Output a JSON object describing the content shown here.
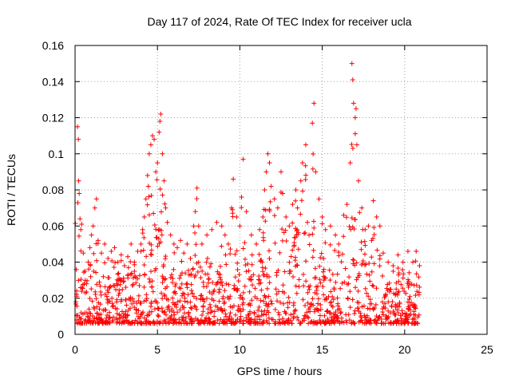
{
  "chart_data": {
    "type": "scatter",
    "title": "Day 117 of 2024, Rate Of TEC Index for receiver ucla",
    "xlabel": "GPS time / hours",
    "ylabel": "ROTI / TECUs",
    "xlim": [
      0,
      25
    ],
    "ylim": [
      0,
      0.16
    ],
    "xticks": [
      0,
      5,
      10,
      15,
      20,
      25
    ],
    "xtick_labels": [
      "0",
      "5",
      "10",
      "15",
      "20",
      "25"
    ],
    "yticks": [
      0,
      0.02,
      0.04,
      0.06,
      0.08,
      0.1,
      0.12,
      0.14,
      0.16
    ],
    "ytick_labels": [
      "0",
      "0.02",
      "0.04",
      "0.06",
      "0.08",
      "0.1",
      "0.12",
      "0.14",
      "0.16"
    ],
    "grid": true,
    "marker": "+",
    "color": "#ff0000",
    "series": [
      {
        "name": "ROTI",
        "points": [
          [
            0.05,
            0.018
          ],
          [
            0.1,
            0.024
          ],
          [
            0.15,
            0.115
          ],
          [
            0.2,
            0.108
          ],
          [
            0.22,
            0.085
          ],
          [
            0.25,
            0.078
          ],
          [
            0.3,
            0.064
          ],
          [
            0.35,
            0.058
          ],
          [
            0.4,
            0.061
          ],
          [
            0.5,
            0.045
          ],
          [
            0.6,
            0.035
          ],
          [
            0.7,
            0.028
          ],
          [
            0.8,
            0.04
          ],
          [
            0.9,
            0.048
          ],
          [
            1.0,
            0.055
          ],
          [
            1.1,
            0.06
          ],
          [
            1.2,
            0.07
          ],
          [
            1.3,
            0.075
          ],
          [
            1.4,
            0.052
          ],
          [
            1.6,
            0.045
          ],
          [
            1.8,
            0.05
          ],
          [
            2.0,
            0.042
          ],
          [
            2.2,
            0.046
          ],
          [
            2.4,
            0.048
          ],
          [
            2.6,
            0.04
          ],
          [
            2.8,
            0.044
          ],
          [
            3.0,
            0.038
          ],
          [
            3.2,
            0.043
          ],
          [
            3.4,
            0.05
          ],
          [
            3.6,
            0.04
          ],
          [
            3.8,
            0.046
          ],
          [
            4.0,
            0.05
          ],
          [
            4.1,
            0.058
          ],
          [
            4.2,
            0.065
          ],
          [
            4.3,
            0.075
          ],
          [
            4.4,
            0.088
          ],
          [
            4.45,
            0.082
          ],
          [
            4.5,
            0.1
          ],
          [
            4.6,
            0.105
          ],
          [
            4.7,
            0.11
          ],
          [
            4.8,
            0.108
          ],
          [
            4.9,
            0.09
          ],
          [
            5.0,
            0.095
          ],
          [
            5.1,
            0.112
          ],
          [
            5.15,
            0.118
          ],
          [
            5.2,
            0.122
          ],
          [
            5.3,
            0.1
          ],
          [
            5.4,
            0.085
          ],
          [
            5.5,
            0.07
          ],
          [
            5.6,
            0.062
          ],
          [
            5.8,
            0.055
          ],
          [
            6.0,
            0.05
          ],
          [
            6.2,
            0.048
          ],
          [
            6.4,
            0.052
          ],
          [
            6.6,
            0.045
          ],
          [
            6.8,
            0.05
          ],
          [
            7.0,
            0.042
          ],
          [
            7.2,
            0.06
          ],
          [
            7.3,
            0.068
          ],
          [
            7.4,
            0.081
          ],
          [
            7.5,
            0.06
          ],
          [
            7.7,
            0.05
          ],
          [
            8.0,
            0.055
          ],
          [
            8.3,
            0.058
          ],
          [
            8.6,
            0.062
          ],
          [
            8.9,
            0.06
          ],
          [
            9.1,
            0.055
          ],
          [
            9.3,
            0.05
          ],
          [
            9.5,
            0.07
          ],
          [
            9.6,
            0.086
          ],
          [
            9.8,
            0.065
          ],
          [
            10.0,
            0.06
          ],
          [
            10.1,
            0.076
          ],
          [
            10.2,
            0.097
          ],
          [
            10.4,
            0.068
          ],
          [
            10.7,
            0.055
          ],
          [
            11.0,
            0.05
          ],
          [
            11.2,
            0.058
          ],
          [
            11.4,
            0.065
          ],
          [
            11.5,
            0.08
          ],
          [
            11.6,
            0.09
          ],
          [
            11.7,
            0.1
          ],
          [
            11.8,
            0.095
          ],
          [
            11.9,
            0.082
          ],
          [
            12.1,
            0.075
          ],
          [
            12.3,
            0.07
          ],
          [
            12.5,
            0.09
          ],
          [
            12.6,
            0.078
          ],
          [
            12.8,
            0.065
          ],
          [
            13.0,
            0.06
          ],
          [
            13.2,
            0.072
          ],
          [
            13.4,
            0.08
          ],
          [
            13.5,
            0.07
          ],
          [
            13.7,
            0.085
          ],
          [
            13.8,
            0.095
          ],
          [
            14.0,
            0.105
          ],
          [
            14.1,
            0.062
          ],
          [
            14.2,
            0.055
          ],
          [
            14.4,
            0.117
          ],
          [
            14.5,
            0.128
          ],
          [
            14.6,
            0.09
          ],
          [
            14.8,
            0.075
          ],
          [
            15.0,
            0.065
          ],
          [
            15.2,
            0.058
          ],
          [
            15.5,
            0.06
          ],
          [
            15.8,
            0.055
          ],
          [
            16.0,
            0.05
          ],
          [
            16.3,
            0.066
          ],
          [
            16.5,
            0.072
          ],
          [
            16.7,
            0.095
          ],
          [
            16.8,
            0.15
          ],
          [
            16.85,
            0.141
          ],
          [
            16.9,
            0.128
          ],
          [
            17.0,
            0.12
          ],
          [
            17.05,
            0.125
          ],
          [
            17.1,
            0.105
          ],
          [
            17.2,
            0.085
          ],
          [
            17.4,
            0.07
          ],
          [
            17.6,
            0.058
          ],
          [
            17.8,
            0.06
          ],
          [
            18.0,
            0.052
          ],
          [
            18.1,
            0.074
          ],
          [
            18.3,
            0.065
          ],
          [
            18.5,
            0.06
          ],
          [
            18.7,
            0.045
          ],
          [
            19.0,
            0.04
          ],
          [
            19.3,
            0.038
          ],
          [
            19.6,
            0.044
          ],
          [
            19.9,
            0.04
          ],
          [
            20.2,
            0.046
          ],
          [
            20.5,
            0.04
          ],
          [
            20.7,
            0.046
          ],
          [
            20.9,
            0.038
          ]
        ]
      }
    ]
  }
}
